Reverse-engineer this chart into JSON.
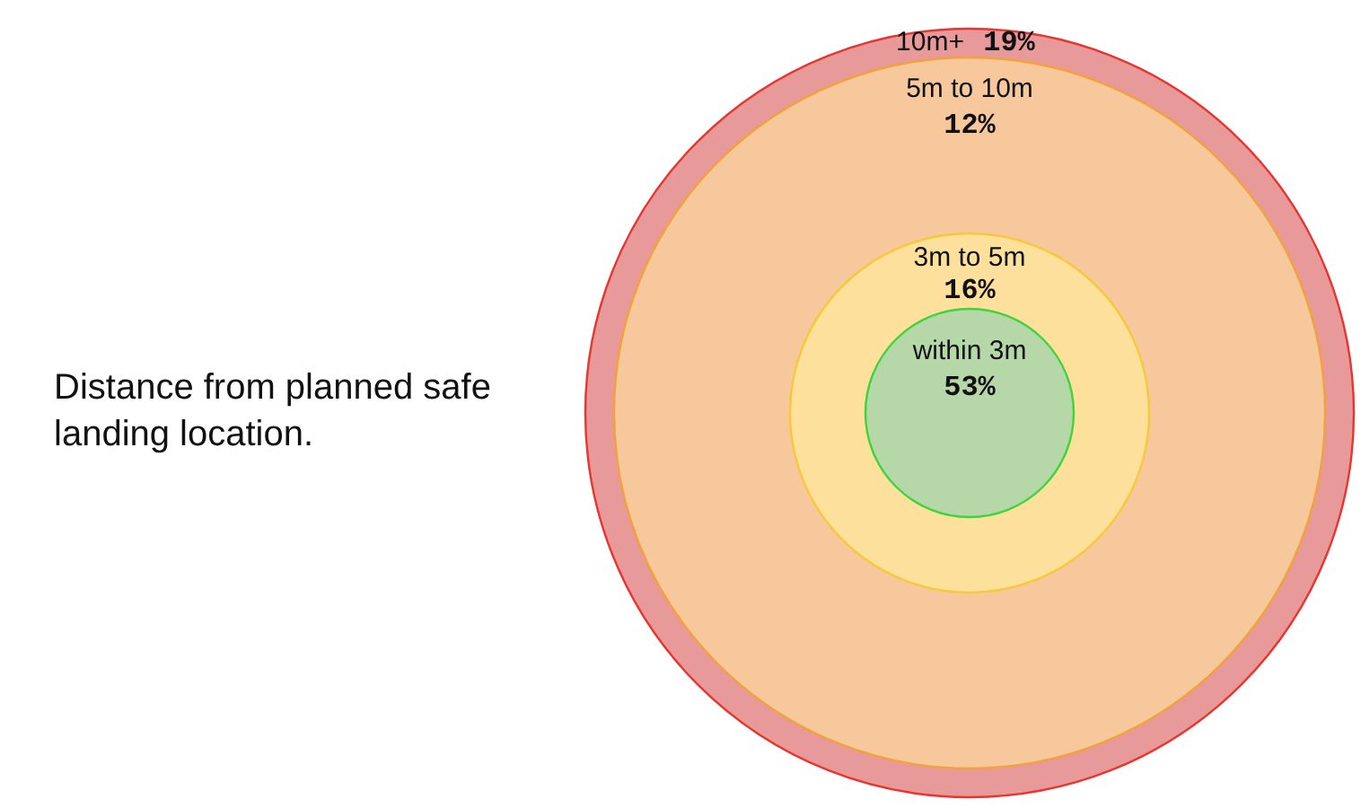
{
  "chart_data": {
    "type": "other",
    "title": "Distance from planned safe landing location.",
    "categories": [
      "10m+",
      "5m to 10m",
      "3m to 5m",
      "within 3m"
    ],
    "values": [
      19,
      12,
      16,
      53
    ],
    "value_labels": [
      "19%",
      "12%",
      "16%",
      "53%"
    ],
    "colors": [
      "#e89a9a",
      "#f6c89b",
      "#fde09b",
      "#b6d7a8"
    ]
  }
}
